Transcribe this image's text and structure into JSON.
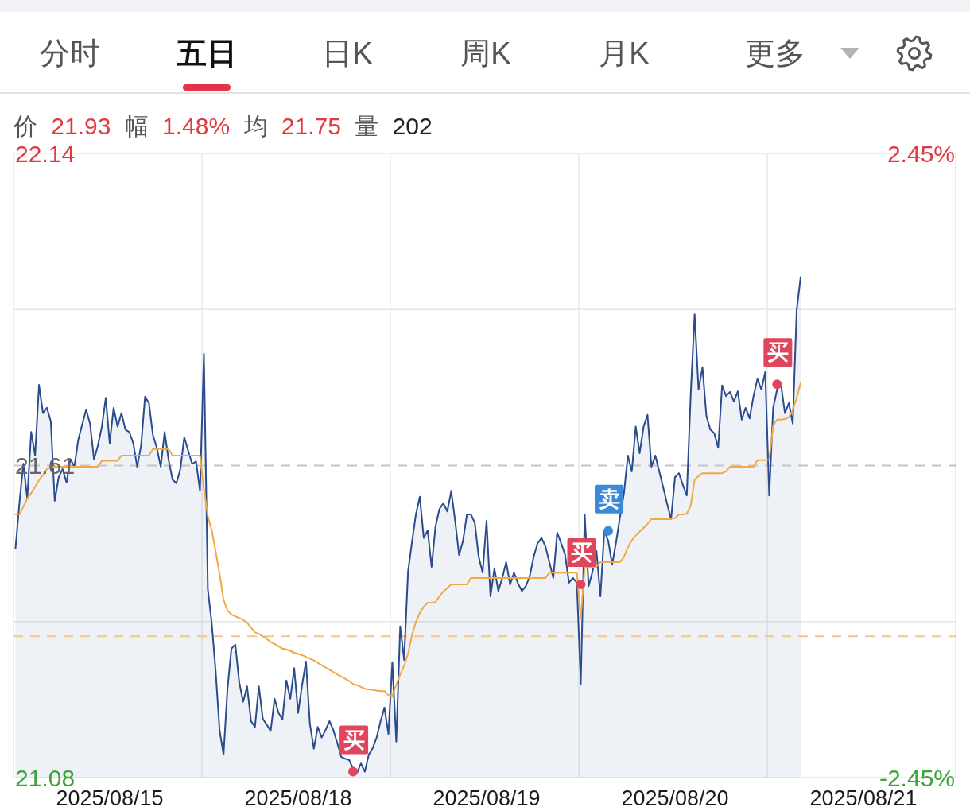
{
  "chart_data": {
    "type": "area",
    "subtitle": "价 21.93 幅 1.48% 均 21.75 量 202",
    "annotations": [
      "分时",
      "五日",
      "日K",
      "周K",
      "月K",
      "更多"
    ],
    "categories": [
      null,
      null,
      null,
      null,
      null,
      null,
      null,
      null,
      null,
      null,
      null,
      null,
      null,
      null,
      null,
      null,
      null,
      null,
      null,
      null,
      null,
      null,
      null,
      null,
      "2025/08/15",
      null,
      null,
      null,
      null,
      null,
      null,
      null,
      null,
      null,
      null,
      null,
      null,
      null,
      null,
      null,
      null,
      null,
      null,
      null,
      null,
      null,
      null,
      null,
      null,
      null,
      null,
      null,
      null,
      null,
      null,
      null,
      null,
      null,
      null,
      null,
      null,
      null,
      null,
      null,
      null,
      null,
      null,
      null,
      null,
      null,
      null,
      null,
      "2025/08/18",
      null,
      null,
      null,
      null,
      null,
      null,
      null,
      null,
      null,
      null,
      null,
      null,
      null,
      null,
      null,
      null,
      null,
      null,
      null,
      null,
      null,
      null,
      null,
      null,
      null,
      null,
      null,
      null,
      null,
      null,
      null,
      null,
      null,
      null,
      null,
      null,
      null,
      null,
      null,
      null,
      null,
      null,
      null,
      null,
      null,
      null,
      null,
      "2025/08/19",
      null,
      null,
      null,
      null,
      null,
      null,
      null,
      null,
      null,
      null,
      null,
      null,
      null,
      null,
      null,
      null,
      null,
      null,
      null,
      null,
      null,
      null,
      null,
      null,
      null,
      null,
      null,
      null,
      null,
      null,
      null,
      null,
      null,
      null,
      null,
      null,
      null,
      null,
      null,
      null,
      null,
      null,
      null,
      null,
      null,
      null,
      null,
      "2025/08/20",
      null,
      null,
      null,
      null,
      null,
      null,
      null,
      null,
      null,
      null,
      null,
      null,
      null,
      null,
      null,
      null,
      null,
      null,
      null,
      null,
      null,
      null,
      null,
      null,
      null,
      null,
      null,
      null,
      null,
      null,
      null,
      null,
      null,
      null,
      null,
      null,
      null,
      null,
      null,
      null,
      null,
      null,
      null,
      null,
      null,
      null,
      null,
      "2025/08/21",
      null,
      null,
      null,
      null,
      null,
      null,
      null,
      null,
      null,
      null,
      null,
      null,
      null,
      null,
      null,
      null,
      null,
      null,
      null,
      null,
      null,
      null,
      null
    ],
    "ylim": [
      21.08,
      22.14
    ],
    "yticks": [
      21.08,
      {
        "value": 21.345,
        "label": null
      },
      21.61,
      {
        "value": 21.875,
        "label": null
      },
      22.14
    ],
    "y2lim": [
      -2.45,
      2.45
    ],
    "y2ticks": [
      {
        "value": -2.45,
        "label": "-2.45%"
      },
      {
        "value": 2.45,
        "label": "2.45%"
      }
    ],
    "grid": "y",
    "ref_lines": [
      {
        "axis": "y",
        "value": 21.61,
        "color": "#c4c4c4",
        "line_style": "dashed"
      },
      {
        "axis": "y",
        "value": 21.32,
        "color": "#f6c58a",
        "line_style": "dashed"
      }
    ],
    "series": [
      {
        "color": "#2b4c8c",
        "values": [
          21.469,
          21.546,
          21.613,
          21.554,
          21.667,
          21.627,
          21.747,
          21.699,
          21.708,
          21.685,
          21.55,
          21.59,
          21.604,
          21.581,
          21.621,
          21.608,
          21.654,
          21.68,
          21.705,
          21.681,
          21.62,
          21.644,
          21.676,
          21.725,
          21.648,
          21.708,
          21.676,
          21.699,
          21.671,
          21.667,
          21.648,
          21.608,
          21.644,
          21.727,
          21.716,
          21.662,
          21.64,
          21.608,
          21.667,
          21.62,
          21.586,
          21.58,
          21.604,
          21.658,
          21.635,
          21.613,
          21.617,
          21.567,
          21.8,
          21.4,
          21.342,
          21.26,
          21.16,
          21.119,
          21.23,
          21.299,
          21.306,
          21.242,
          21.209,
          21.235,
          21.176,
          21.166,
          21.235,
          21.18,
          21.17,
          21.159,
          21.214,
          21.19,
          21.179,
          21.245,
          21.214,
          21.266,
          21.19,
          21.237,
          21.277,
          21.171,
          21.129,
          21.166,
          21.148,
          21.161,
          21.176,
          21.16,
          21.138,
          21.115,
          21.112,
          21.11,
          21.095,
          21.088,
          21.104,
          21.09,
          21.119,
          21.13,
          21.148,
          21.176,
          21.199,
          21.154,
          21.276,
          21.141,
          21.337,
          21.28,
          21.43,
          21.48,
          21.527,
          21.557,
          21.487,
          21.5,
          21.438,
          21.507,
          21.536,
          21.546,
          21.532,
          21.567,
          21.516,
          21.458,
          21.482,
          21.527,
          21.527,
          21.513,
          21.455,
          21.428,
          21.516,
          21.388,
          21.435,
          21.397,
          21.419,
          21.446,
          21.408,
          21.428,
          21.41,
          21.397,
          21.405,
          21.422,
          21.455,
          21.478,
          21.487,
          21.473,
          21.446,
          21.419,
          21.496,
          21.478,
          21.459,
          21.411,
          21.419,
          21.411,
          21.239,
          21.527,
          21.405,
          21.43,
          21.465,
          21.388,
          21.5,
          21.482,
          21.442,
          21.48,
          21.523,
          21.563,
          21.627,
          21.6,
          21.676,
          21.631,
          21.676,
          21.696,
          21.608,
          21.627,
          21.6,
          21.573,
          21.545,
          21.519,
          21.59,
          21.597,
          21.577,
          21.559,
          21.73,
          21.867,
          21.739,
          21.777,
          21.694,
          21.671,
          21.665,
          21.64,
          21.746,
          21.728,
          21.735,
          21.719,
          21.736,
          21.688,
          21.708,
          21.69,
          21.728,
          21.757,
          21.739,
          21.769,
          21.559,
          21.708,
          21.739,
          21.748,
          21.699,
          21.716,
          21.681,
          21.874,
          21.93,
          null,
          null,
          null,
          null,
          null,
          null,
          null,
          null,
          null,
          null,
          null,
          null,
          null,
          null,
          null,
          null,
          null,
          null,
          null,
          null,
          null,
          null,
          null,
          null,
          null,
          null,
          null,
          null,
          null,
          null,
          null,
          null,
          null,
          null,
          null,
          null,
          null,
          null,
          null
        ]
      },
      {
        "type": "line",
        "color": "#f0a947",
        "values": [
          21.527,
          21.527,
          21.54,
          21.554,
          21.563,
          21.574,
          21.585,
          21.594,
          21.604,
          21.607,
          21.608,
          21.608,
          21.608,
          21.608,
          21.608,
          21.608,
          21.608,
          21.608,
          21.608,
          21.608,
          21.608,
          21.608,
          21.618,
          21.618,
          21.618,
          21.618,
          21.618,
          21.627,
          21.627,
          21.627,
          21.627,
          21.627,
          21.627,
          21.627,
          21.627,
          21.638,
          21.638,
          21.638,
          21.638,
          21.638,
          21.627,
          21.627,
          21.627,
          21.627,
          21.627,
          21.627,
          21.627,
          21.627,
          21.57,
          21.524,
          21.5,
          21.464,
          21.425,
          21.382,
          21.364,
          21.357,
          21.354,
          21.351,
          21.348,
          21.343,
          21.335,
          21.327,
          21.324,
          21.32,
          21.316,
          21.31,
          21.307,
          21.303,
          21.299,
          21.298,
          21.295,
          21.292,
          21.29,
          21.288,
          21.285,
          21.282,
          21.279,
          21.275,
          21.271,
          21.267,
          21.263,
          21.259,
          21.255,
          21.252,
          21.248,
          21.244,
          21.239,
          21.237,
          21.234,
          21.231,
          21.23,
          21.229,
          21.228,
          21.227,
          21.227,
          21.22,
          21.219,
          21.238,
          21.255,
          21.27,
          21.29,
          21.322,
          21.344,
          21.36,
          21.37,
          21.377,
          21.377,
          21.378,
          21.388,
          21.396,
          21.402,
          21.408,
          21.408,
          21.408,
          21.408,
          21.408,
          21.419,
          21.419,
          21.419,
          21.419,
          21.419,
          21.419,
          21.419,
          21.419,
          21.419,
          21.419,
          21.419,
          21.419,
          21.419,
          21.419,
          21.419,
          21.419,
          21.419,
          21.419,
          21.419,
          21.419,
          21.428,
          21.428,
          21.428,
          21.428,
          21.428,
          21.428,
          21.428,
          21.428,
          21.351,
          21.438,
          21.438,
          21.438,
          21.438,
          21.446,
          21.446,
          21.446,
          21.446,
          21.446,
          21.446,
          21.455,
          21.471,
          21.483,
          21.491,
          21.498,
          21.504,
          21.511,
          21.519,
          21.519,
          21.519,
          21.519,
          21.519,
          21.519,
          21.521,
          21.527,
          21.527,
          21.528,
          21.542,
          21.586,
          21.592,
          21.597,
          21.597,
          21.597,
          21.597,
          21.597,
          21.597,
          21.6,
          21.608,
          21.608,
          21.608,
          21.608,
          21.608,
          21.608,
          21.608,
          21.619,
          21.619,
          21.619,
          21.62,
          21.678,
          21.688,
          21.688,
          21.689,
          21.692,
          21.704,
          21.725,
          21.75,
          null,
          null,
          null,
          null,
          null,
          null,
          null,
          null,
          null,
          null,
          null,
          null,
          null,
          null,
          null,
          null,
          null,
          null,
          null,
          null,
          null,
          null,
          null,
          null,
          null,
          null,
          null,
          null,
          null,
          null,
          null,
          null,
          null,
          null,
          null,
          null,
          null,
          null,
          null
        ]
      },
      {
        "name": "买",
        "type": "scatter",
        "marker": "circle",
        "color": "#e0455e",
        "values": [
          null,
          null,
          null,
          null,
          null,
          null,
          null,
          null,
          null,
          null,
          null,
          null,
          null,
          null,
          null,
          null,
          null,
          null,
          null,
          null,
          null,
          null,
          null,
          null,
          null,
          null,
          null,
          null,
          null,
          null,
          null,
          null,
          null,
          null,
          null,
          null,
          null,
          null,
          null,
          null,
          null,
          null,
          null,
          null,
          null,
          null,
          null,
          null,
          null,
          null,
          null,
          null,
          null,
          null,
          null,
          null,
          null,
          null,
          null,
          null,
          null,
          null,
          null,
          null,
          null,
          null,
          null,
          null,
          null,
          null,
          null,
          null,
          null,
          null,
          null,
          null,
          null,
          null,
          null,
          null,
          null,
          null,
          null,
          null,
          null,
          null,
          21.09,
          null,
          null,
          null,
          null,
          null,
          null,
          null,
          null,
          null,
          null,
          null,
          null,
          null,
          null,
          null,
          null,
          null,
          null,
          null,
          null,
          null,
          null,
          null,
          null,
          null,
          null,
          null,
          null,
          null,
          null,
          null,
          null,
          null,
          null,
          null,
          null,
          null,
          null,
          null,
          null,
          null,
          null,
          null,
          null,
          null,
          null,
          null,
          null,
          null,
          null,
          null,
          null,
          null,
          null,
          null,
          null,
          null,
          21.408,
          null,
          null,
          null,
          null,
          null,
          null,
          null,
          null,
          null,
          null,
          null,
          null,
          null,
          null,
          null,
          null,
          null,
          null,
          null,
          null,
          null,
          null,
          null,
          null,
          null,
          null,
          null,
          null,
          null,
          null,
          null,
          null,
          null,
          null,
          null,
          null,
          null,
          null,
          null,
          null,
          null,
          null,
          null,
          null,
          null,
          null,
          null,
          null,
          null,
          21.748,
          null,
          null,
          null,
          null,
          null,
          null,
          null,
          null,
          null,
          null,
          null,
          null,
          null,
          null,
          null,
          null,
          null,
          null,
          null,
          null,
          null,
          null,
          null,
          null,
          null,
          null,
          null,
          null,
          null,
          null,
          null,
          null,
          null,
          null,
          null,
          null,
          null,
          null,
          null,
          null,
          null,
          null,
          null,
          null,
          null
        ]
      },
      {
        "name": "卖",
        "type": "scatter",
        "marker": "circle",
        "color": "#3a8ad6",
        "values": [
          null,
          null,
          null,
          null,
          null,
          null,
          null,
          null,
          null,
          null,
          null,
          null,
          null,
          null,
          null,
          null,
          null,
          null,
          null,
          null,
          null,
          null,
          null,
          null,
          null,
          null,
          null,
          null,
          null,
          null,
          null,
          null,
          null,
          null,
          null,
          null,
          null,
          null,
          null,
          null,
          null,
          null,
          null,
          null,
          null,
          null,
          null,
          null,
          null,
          null,
          null,
          null,
          null,
          null,
          null,
          null,
          null,
          null,
          null,
          null,
          null,
          null,
          null,
          null,
          null,
          null,
          null,
          null,
          null,
          null,
          null,
          null,
          null,
          null,
          null,
          null,
          null,
          null,
          null,
          null,
          null,
          null,
          null,
          null,
          null,
          null,
          null,
          null,
          null,
          null,
          null,
          null,
          null,
          null,
          null,
          null,
          null,
          null,
          null,
          null,
          null,
          null,
          null,
          null,
          null,
          null,
          null,
          null,
          null,
          null,
          null,
          null,
          null,
          null,
          null,
          null,
          null,
          null,
          null,
          null,
          null,
          null,
          null,
          null,
          null,
          null,
          null,
          null,
          null,
          null,
          null,
          null,
          null,
          null,
          null,
          null,
          null,
          null,
          null,
          null,
          null,
          null,
          null,
          null,
          null,
          null,
          null,
          null,
          null,
          null,
          null,
          21.499,
          null,
          null,
          null,
          null,
          null,
          null,
          null,
          null,
          null,
          null,
          null,
          null,
          null,
          null,
          null,
          null,
          null,
          null,
          null,
          null,
          null,
          null,
          null,
          null,
          null,
          null,
          null,
          null,
          null,
          null,
          null,
          null,
          null,
          null,
          null,
          null,
          null,
          null,
          null,
          null,
          null,
          null,
          null,
          null,
          null,
          null,
          null,
          null,
          null,
          null,
          null,
          null,
          null,
          null,
          null,
          null,
          null,
          null,
          null,
          null,
          null,
          null,
          null,
          null,
          null,
          null,
          null,
          null,
          null,
          null,
          null,
          null,
          null,
          null,
          null,
          null,
          null,
          null,
          null,
          null,
          null,
          null,
          null,
          null,
          null,
          null,
          null,
          null
        ]
      }
    ]
  }
}
